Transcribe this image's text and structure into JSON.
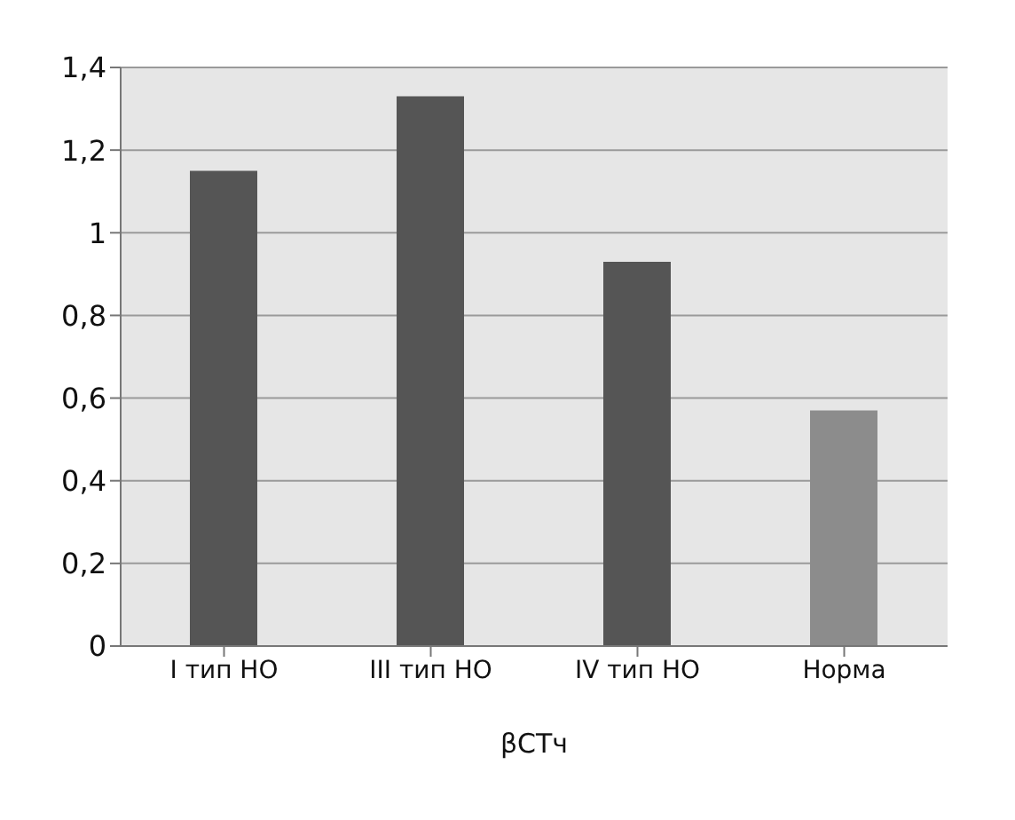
{
  "chart_data": {
    "type": "bar",
    "categories": [
      "I тип НО",
      "III тип НО",
      "IV тип НО",
      "Норма"
    ],
    "values": [
      1.15,
      1.33,
      0.93,
      0.57
    ],
    "colors": [
      "#555555",
      "#555555",
      "#555555",
      "#8c8c8c"
    ],
    "xlabel": "βСТч",
    "ylim": [
      0,
      1.4
    ],
    "yticks": [
      0,
      {
        "value": 0.2,
        "label": "0,2"
      },
      {
        "value": 0.4,
        "label": "0,4"
      },
      {
        "value": 0.6,
        "label": "0,6"
      },
      {
        "value": 0.8,
        "label": "0,8"
      },
      1,
      {
        "value": 1.2,
        "label": "1,2"
      },
      {
        "value": 1.4,
        "label": "1,4"
      }
    ],
    "grid": "y"
  }
}
